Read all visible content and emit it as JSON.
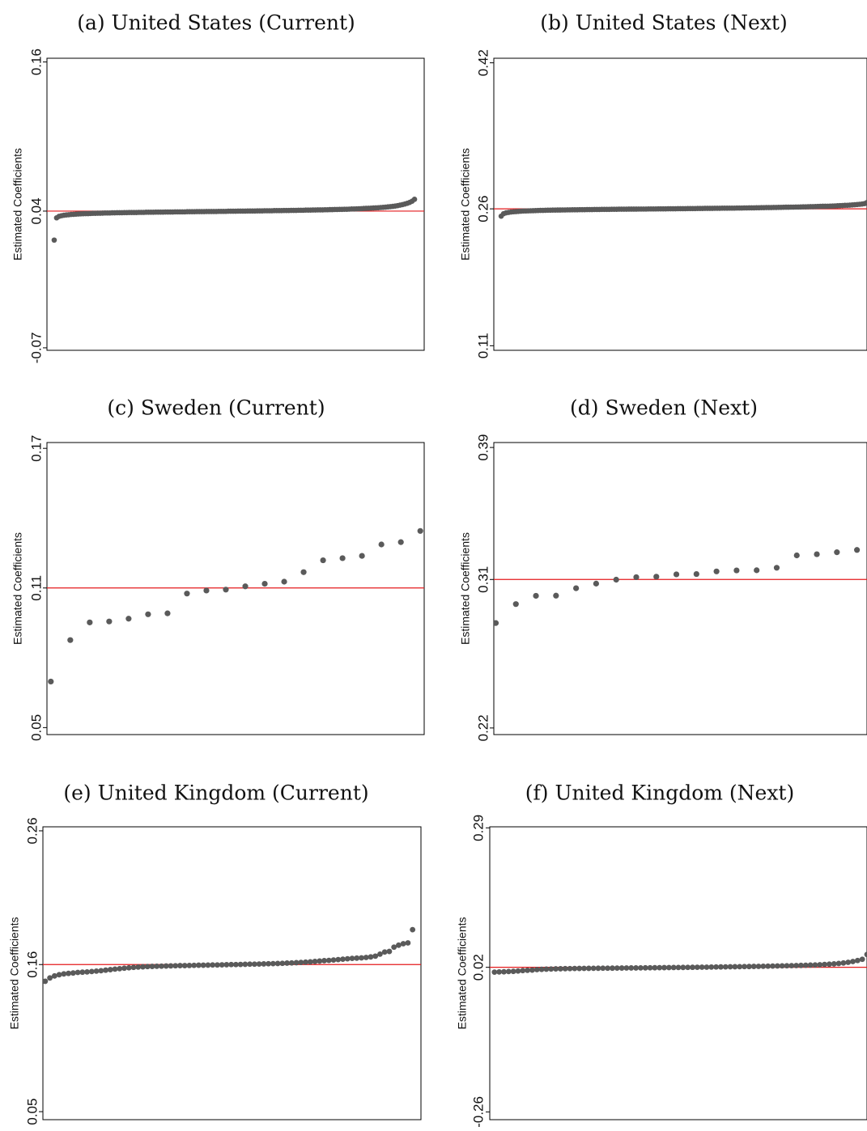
{
  "colors": {
    "marker": "#5a5a5a",
    "reference_line": "#e41a1c",
    "frame": "#000000",
    "background": "#ffffff"
  },
  "chart_data": [
    {
      "type": "scatter",
      "title": "(a) United States (Current)",
      "ylabel": "Estimated Coefficients",
      "yticks": [
        {
          "value": -0.07,
          "label": "-0.07"
        },
        {
          "value": 0.04,
          "label": "0.04"
        },
        {
          "value": 0.16,
          "label": "0.16"
        }
      ],
      "ylim": [
        -0.072,
        0.163
      ],
      "reference_y": 0.04,
      "x": [
        1,
        2,
        3,
        4,
        5,
        6,
        7,
        8,
        9,
        10,
        11,
        12,
        13,
        14,
        15,
        16,
        17,
        18,
        19,
        20,
        21,
        22,
        23,
        24,
        25,
        26,
        27,
        28,
        29,
        30,
        31,
        32,
        33,
        34,
        35,
        36,
        37,
        38,
        39,
        40,
        41,
        42,
        43,
        44,
        45,
        46,
        47,
        48,
        49,
        50,
        51,
        52,
        53,
        54,
        55,
        56,
        57,
        58,
        59,
        60,
        61,
        62,
        63,
        64,
        65,
        66,
        67,
        68,
        69,
        70,
        71,
        72,
        73,
        74,
        75,
        76,
        77,
        78,
        79,
        80,
        81,
        82,
        83,
        84,
        85,
        86,
        87,
        88,
        89,
        90,
        91,
        92,
        93,
        94,
        95,
        96,
        97,
        98,
        99,
        100,
        101,
        102,
        103,
        104,
        105,
        106,
        107,
        108,
        109,
        110,
        111,
        112,
        113,
        114,
        115,
        116,
        117,
        118,
        119,
        120,
        121,
        122,
        123,
        124,
        125,
        126,
        127,
        128,
        129,
        130,
        131,
        132,
        133,
        134,
        135,
        136,
        137,
        138,
        139,
        140,
        141,
        142,
        143,
        144,
        145,
        146,
        147,
        148,
        149,
        150
      ],
      "values": [
        0.0167,
        0.0346,
        0.0358,
        0.0363,
        0.0367,
        0.0369,
        0.0371,
        0.0373,
        0.0374,
        0.0376,
        0.0377,
        0.0378,
        0.0379,
        0.038,
        0.038,
        0.0381,
        0.0382,
        0.0382,
        0.0383,
        0.0383,
        0.0384,
        0.0385,
        0.0385,
        0.0385,
        0.0386,
        0.0386,
        0.0387,
        0.0387,
        0.0387,
        0.0388,
        0.0388,
        0.0389,
        0.0389,
        0.0389,
        0.0389,
        0.039,
        0.039,
        0.039,
        0.0391,
        0.0391,
        0.0391,
        0.0391,
        0.0392,
        0.0392,
        0.0392,
        0.0392,
        0.0393,
        0.0393,
        0.0393,
        0.0393,
        0.0394,
        0.0394,
        0.0394,
        0.0394,
        0.0394,
        0.0395,
        0.0395,
        0.0395,
        0.0395,
        0.0396,
        0.0396,
        0.0396,
        0.0396,
        0.0397,
        0.0397,
        0.0397,
        0.0397,
        0.0397,
        0.0398,
        0.0398,
        0.0398,
        0.0398,
        0.0399,
        0.0399,
        0.0399,
        0.0399,
        0.04,
        0.04,
        0.04,
        0.04,
        0.0401,
        0.0401,
        0.0401,
        0.0401,
        0.0402,
        0.0402,
        0.0402,
        0.0403,
        0.0403,
        0.0403,
        0.0403,
        0.0404,
        0.0404,
        0.0404,
        0.0404,
        0.0405,
        0.0405,
        0.0405,
        0.0406,
        0.0406,
        0.0406,
        0.0407,
        0.0407,
        0.0407,
        0.0408,
        0.0408,
        0.0408,
        0.0409,
        0.0409,
        0.041,
        0.041,
        0.041,
        0.0411,
        0.0411,
        0.0412,
        0.0412,
        0.0413,
        0.0413,
        0.0414,
        0.0414,
        0.0415,
        0.0415,
        0.0416,
        0.0417,
        0.0417,
        0.0418,
        0.0419,
        0.042,
        0.0421,
        0.0422,
        0.0423,
        0.0424,
        0.0425,
        0.0426,
        0.0427,
        0.0429,
        0.043,
        0.0432,
        0.0434,
        0.0436,
        0.0438,
        0.0441,
        0.0444,
        0.0448,
        0.0452,
        0.0457,
        0.0463,
        0.047,
        0.048,
        0.0495
      ],
      "xlim": [
        -2.0,
        154.0
      ]
    },
    {
      "type": "scatter",
      "title": "(b) United States (Next)",
      "ylabel": "Estimated Coefficients",
      "yticks": [
        {
          "value": 0.11,
          "label": "0.11"
        },
        {
          "value": 0.26,
          "label": "0.26"
        },
        {
          "value": 0.42,
          "label": "0.42"
        }
      ],
      "ylim": [
        0.105,
        0.425
      ],
      "reference_y": 0.26,
      "x": [
        1,
        2,
        3,
        4,
        5,
        6,
        7,
        8,
        9,
        10,
        11,
        12,
        13,
        14,
        15,
        16,
        17,
        18,
        19,
        20,
        21,
        22,
        23,
        24,
        25,
        26,
        27,
        28,
        29,
        30,
        31,
        32,
        33,
        34,
        35,
        36,
        37,
        38,
        39,
        40,
        41,
        42,
        43,
        44,
        45,
        46,
        47,
        48,
        49,
        50,
        51,
        52,
        53,
        54,
        55,
        56,
        57,
        58,
        59,
        60,
        61,
        62,
        63,
        64,
        65,
        66,
        67,
        68,
        69,
        70,
        71,
        72,
        73,
        74,
        75,
        76,
        77,
        78,
        79,
        80,
        81,
        82,
        83,
        84,
        85,
        86,
        87,
        88,
        89,
        90,
        91,
        92,
        93,
        94,
        95,
        96,
        97,
        98,
        99,
        100,
        101,
        102,
        103,
        104,
        105,
        106,
        107,
        108,
        109,
        110,
        111,
        112,
        113,
        114,
        115,
        116,
        117,
        118,
        119,
        120,
        121,
        122,
        123,
        124,
        125,
        126,
        127,
        128,
        129,
        130,
        131,
        132,
        133,
        134,
        135,
        136,
        137,
        138,
        139,
        140,
        141,
        142,
        143,
        144,
        145,
        146,
        147,
        148,
        149,
        150
      ],
      "values": [
        0.252,
        0.2547,
        0.2556,
        0.2561,
        0.2565,
        0.2568,
        0.257,
        0.2572,
        0.2574,
        0.2576,
        0.2577,
        0.2578,
        0.2579,
        0.258,
        0.2581,
        0.2582,
        0.2583,
        0.2583,
        0.2584,
        0.2585,
        0.2585,
        0.2586,
        0.2586,
        0.2587,
        0.2587,
        0.2588,
        0.2588,
        0.2589,
        0.2589,
        0.259,
        0.259,
        0.259,
        0.2591,
        0.2591,
        0.2591,
        0.2592,
        0.2592,
        0.2592,
        0.2593,
        0.2593,
        0.2593,
        0.2594,
        0.2594,
        0.2594,
        0.2594,
        0.2595,
        0.2595,
        0.2595,
        0.2596,
        0.2596,
        0.2596,
        0.2596,
        0.2597,
        0.2597,
        0.2597,
        0.2597,
        0.2598,
        0.2598,
        0.2598,
        0.2598,
        0.2599,
        0.2599,
        0.2599,
        0.2599,
        0.26,
        0.26,
        0.26,
        0.26,
        0.2601,
        0.2601,
        0.2601,
        0.2601,
        0.2602,
        0.2602,
        0.2602,
        0.2602,
        0.2603,
        0.2603,
        0.2603,
        0.2603,
        0.2604,
        0.2604,
        0.2604,
        0.2605,
        0.2605,
        0.2605,
        0.2605,
        0.2606,
        0.2606,
        0.2606,
        0.2607,
        0.2607,
        0.2607,
        0.2608,
        0.2608,
        0.2608,
        0.2609,
        0.2609,
        0.2609,
        0.261,
        0.261,
        0.2611,
        0.2611,
        0.2611,
        0.2612,
        0.2612,
        0.2613,
        0.2613,
        0.2614,
        0.2614,
        0.2614,
        0.2615,
        0.2615,
        0.2616,
        0.2616,
        0.2617,
        0.2618,
        0.2618,
        0.2619,
        0.2619,
        0.262,
        0.262,
        0.2621,
        0.2622,
        0.2622,
        0.2623,
        0.2624,
        0.2624,
        0.2625,
        0.2626,
        0.2627,
        0.2628,
        0.2628,
        0.2629,
        0.263,
        0.2631,
        0.2632,
        0.2634,
        0.2635,
        0.2636,
        0.2638,
        0.2639,
        0.2641,
        0.2643,
        0.2645,
        0.2647,
        0.265,
        0.2653,
        0.2657,
        0.2669
      ],
      "xlim": [
        -2.0,
        150.0
      ]
    },
    {
      "type": "scatter",
      "title": "(c) Sweden (Current)",
      "ylabel": "Estimated Coefficients",
      "yticks": [
        {
          "value": 0.05,
          "label": "0.05"
        },
        {
          "value": 0.11,
          "label": "0.11"
        },
        {
          "value": 0.17,
          "label": "0.17"
        }
      ],
      "ylim": [
        0.047,
        0.1725
      ],
      "reference_y": 0.11,
      "x": [
        1,
        2,
        3,
        4,
        5,
        6,
        7,
        8,
        9,
        10,
        11,
        12,
        13,
        14,
        15,
        16,
        17,
        18,
        19,
        20
      ],
      "values": [
        0.0698,
        0.0876,
        0.0952,
        0.0956,
        0.0968,
        0.0987,
        0.0991,
        0.1076,
        0.1089,
        0.1093,
        0.1107,
        0.1118,
        0.1127,
        0.1168,
        0.1219,
        0.1228,
        0.1238,
        0.1287,
        0.1297,
        0.1345
      ],
      "xlim": [
        0.8,
        20.2
      ]
    },
    {
      "type": "scatter",
      "title": "(d) Sweden (Next)",
      "ylabel": "Estimated Coefficients",
      "yticks": [
        {
          "value": 0.22,
          "label": "0.22"
        },
        {
          "value": 0.31,
          "label": "0.31"
        },
        {
          "value": 0.39,
          "label": "0.39"
        }
      ],
      "ylim": [
        0.216,
        0.393
      ],
      "reference_y": 0.31,
      "x": [
        1,
        2,
        3,
        4,
        5,
        6,
        7,
        8,
        9,
        10,
        11,
        12,
        13,
        14,
        15,
        16,
        17,
        18,
        19,
        20
      ],
      "values": [
        0.2836,
        0.2951,
        0.3001,
        0.3002,
        0.3047,
        0.3075,
        0.3099,
        0.3114,
        0.3117,
        0.3131,
        0.3133,
        0.3149,
        0.3155,
        0.3156,
        0.3171,
        0.3246,
        0.3253,
        0.3265,
        0.3279,
        0.3373
      ],
      "xlim": [
        0.9,
        19.5
      ]
    },
    {
      "type": "scatter",
      "title": "(e) United Kingdom (Current)",
      "ylabel": "Estimated Coefficients",
      "yticks": [
        {
          "value": 0.05,
          "label": "0.05"
        },
        {
          "value": 0.16,
          "label": "0.16"
        },
        {
          "value": 0.26,
          "label": "0.26"
        }
      ],
      "ylim": [
        0.044,
        0.263
      ],
      "reference_y": 0.16,
      "x": [
        1,
        2,
        3,
        4,
        5,
        6,
        7,
        8,
        9,
        10,
        11,
        12,
        13,
        14,
        15,
        16,
        17,
        18,
        19,
        20,
        21,
        22,
        23,
        24,
        25,
        26,
        27,
        28,
        29,
        30,
        31,
        32,
        33,
        34,
        35,
        36,
        37,
        38,
        39,
        40,
        41,
        42,
        43,
        44,
        45,
        46,
        47,
        48,
        49,
        50,
        51,
        52,
        53,
        54,
        55,
        56,
        57,
        58,
        59,
        60,
        61,
        62,
        63,
        64,
        65,
        66,
        67,
        68,
        69,
        70,
        71,
        72,
        73,
        74,
        75,
        76,
        77,
        78,
        79,
        80
      ],
      "values": [
        0.1475,
        0.15,
        0.1515,
        0.1524,
        0.153,
        0.1534,
        0.1537,
        0.1541,
        0.1543,
        0.1545,
        0.1548,
        0.1551,
        0.1554,
        0.1558,
        0.1562,
        0.1566,
        0.1569,
        0.1573,
        0.1576,
        0.1579,
        0.1581,
        0.1583,
        0.1585,
        0.1586,
        0.1587,
        0.1588,
        0.1589,
        0.159,
        0.1591,
        0.1592,
        0.1592,
        0.1593,
        0.1594,
        0.1595,
        0.1595,
        0.1596,
        0.1597,
        0.1597,
        0.1598,
        0.1599,
        0.16,
        0.16,
        0.1601,
        0.1602,
        0.1603,
        0.1603,
        0.1604,
        0.1605,
        0.1606,
        0.1607,
        0.1608,
        0.1609,
        0.1611,
        0.1612,
        0.1614,
        0.1616,
        0.1618,
        0.162,
        0.1623,
        0.1626,
        0.1629,
        0.1631,
        0.1634,
        0.1637,
        0.164,
        0.1643,
        0.1646,
        0.1648,
        0.165,
        0.1653,
        0.1657,
        0.1663,
        0.1678,
        0.1694,
        0.1698,
        0.173,
        0.1745,
        0.1756,
        0.1762,
        0.1861
      ],
      "xlim": [
        0.5,
        81.8
      ]
    },
    {
      "type": "scatter",
      "title": "(f) United Kingdom (Next)",
      "ylabel": "Estimated Coefficients",
      "yticks": [
        {
          "value": -0.26,
          "label": "-0.26"
        },
        {
          "value": 0.02,
          "label": "0.02"
        },
        {
          "value": 0.29,
          "label": "0.29"
        }
      ],
      "ylim": [
        -0.275,
        0.292
      ],
      "reference_y": 0.02,
      "x": [
        1,
        2,
        3,
        4,
        5,
        6,
        7,
        8,
        9,
        10,
        11,
        12,
        13,
        14,
        15,
        16,
        17,
        18,
        19,
        20,
        21,
        22,
        23,
        24,
        25,
        26,
        27,
        28,
        29,
        30,
        31,
        32,
        33,
        34,
        35,
        36,
        37,
        38,
        39,
        40,
        41,
        42,
        43,
        44,
        45,
        46,
        47,
        48,
        49,
        50,
        51,
        52,
        53,
        54,
        55,
        56,
        57,
        58,
        59,
        60,
        61,
        62,
        63,
        64,
        65,
        66,
        67,
        68,
        69,
        70,
        71,
        72,
        73,
        74,
        75,
        76,
        77,
        78,
        79,
        80
      ],
      "values": [
        0.0107,
        0.0111,
        0.0113,
        0.0118,
        0.0121,
        0.0128,
        0.0136,
        0.0142,
        0.0147,
        0.0156,
        0.016,
        0.0164,
        0.0167,
        0.017,
        0.0172,
        0.0174,
        0.0175,
        0.0177,
        0.0178,
        0.0179,
        0.018,
        0.0181,
        0.0182,
        0.0183,
        0.0183,
        0.0184,
        0.0185,
        0.0186,
        0.0187,
        0.0188,
        0.0188,
        0.0189,
        0.019,
        0.0191,
        0.0192,
        0.0193,
        0.0194,
        0.0195,
        0.0196,
        0.0197,
        0.0198,
        0.0199,
        0.02,
        0.0201,
        0.0202,
        0.0203,
        0.0205,
        0.0206,
        0.0207,
        0.0208,
        0.021,
        0.0211,
        0.0212,
        0.0214,
        0.0215,
        0.0217,
        0.0218,
        0.022,
        0.0222,
        0.0224,
        0.0226,
        0.0228,
        0.023,
        0.0232,
        0.0234,
        0.0237,
        0.024,
        0.0243,
        0.0246,
        0.025,
        0.0255,
        0.026,
        0.0266,
        0.0274,
        0.0284,
        0.0296,
        0.0312,
        0.0332,
        0.0355,
        0.0448
      ],
      "xlim": [
        0.0,
        80.0
      ]
    }
  ]
}
